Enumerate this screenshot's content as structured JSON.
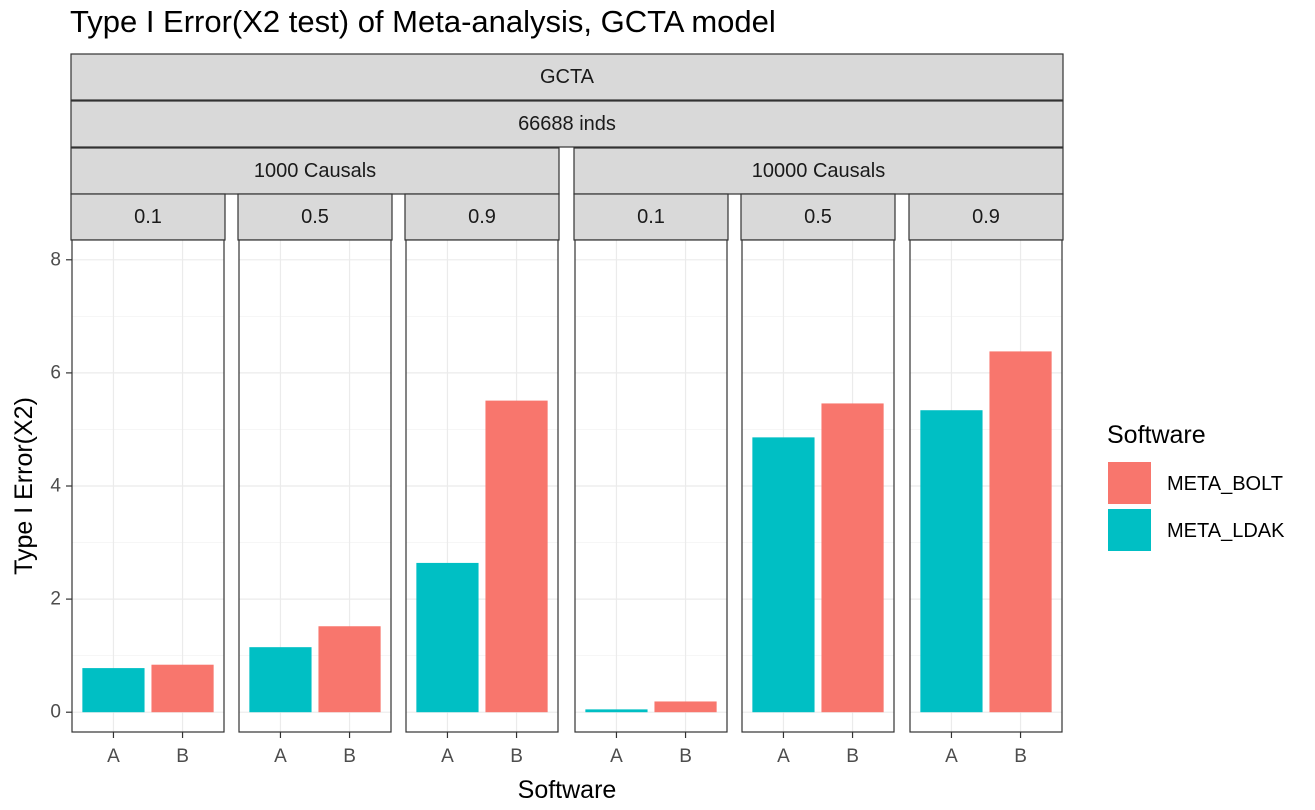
{
  "chart_data": {
    "type": "bar",
    "title": "Type I Error(X2 test) of Meta-analysis, GCTA model",
    "xlabel": "Software",
    "ylabel": "Type I Error(X2)",
    "ylim": [
      -0.35,
      8.35
    ],
    "yticks": [
      0,
      2,
      4,
      6,
      8
    ],
    "grid": true,
    "legend": {
      "title": "Software",
      "placement": "right",
      "entries": [
        {
          "name": "META_BOLT",
          "color": "#F8766D"
        },
        {
          "name": "META_LDAK",
          "color": "#00BFC4"
        }
      ]
    },
    "facet_strips": {
      "model": "GCTA",
      "individuals": "66688 inds",
      "causals": [
        "1000 Causals",
        "10000 Causals"
      ],
      "heritability": [
        "0.1",
        "0.5",
        "0.9"
      ]
    },
    "categories": [
      "A",
      "B"
    ],
    "series": [
      {
        "name": "META_BOLT",
        "color": "#F8766D"
      },
      {
        "name": "META_LDAK",
        "color": "#00BFC4"
      }
    ],
    "panels": [
      {
        "causals": "1000 Causals",
        "h2": "0.1",
        "bars": [
          {
            "x": "A",
            "series": "META_LDAK",
            "value": 0.78
          },
          {
            "x": "B",
            "series": "META_BOLT",
            "value": 0.84
          }
        ]
      },
      {
        "causals": "1000 Causals",
        "h2": "0.5",
        "bars": [
          {
            "x": "A",
            "series": "META_LDAK",
            "value": 1.15
          },
          {
            "x": "B",
            "series": "META_BOLT",
            "value": 1.52
          }
        ]
      },
      {
        "causals": "1000 Causals",
        "h2": "0.9",
        "bars": [
          {
            "x": "A",
            "series": "META_LDAK",
            "value": 2.64
          },
          {
            "x": "B",
            "series": "META_BOLT",
            "value": 5.51
          }
        ]
      },
      {
        "causals": "10000 Causals",
        "h2": "0.1",
        "bars": [
          {
            "x": "A",
            "series": "META_LDAK",
            "value": 0.05
          },
          {
            "x": "B",
            "series": "META_BOLT",
            "value": 0.19
          }
        ]
      },
      {
        "causals": "10000 Causals",
        "h2": "0.5",
        "bars": [
          {
            "x": "A",
            "series": "META_LDAK",
            "value": 4.86
          },
          {
            "x": "B",
            "series": "META_BOLT",
            "value": 5.46
          }
        ]
      },
      {
        "causals": "10000 Causals",
        "h2": "0.9",
        "bars": [
          {
            "x": "A",
            "series": "META_LDAK",
            "value": 5.34
          },
          {
            "x": "B",
            "series": "META_BOLT",
            "value": 6.38
          }
        ]
      }
    ]
  }
}
